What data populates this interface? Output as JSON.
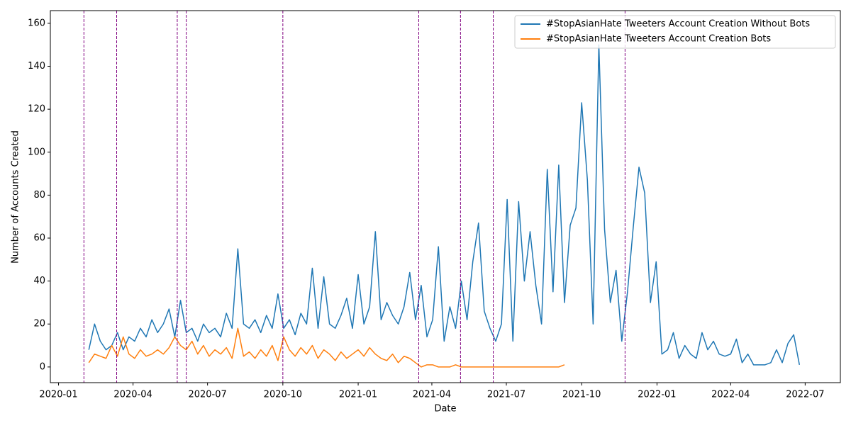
{
  "chart_data": {
    "type": "line",
    "xlabel": "Date",
    "ylabel": "Number of Accounts Created",
    "xlim": [
      "2019-12-22",
      "2022-08-13"
    ],
    "ylim": [
      -7.3,
      165.9
    ],
    "yticks": [
      0,
      20,
      40,
      60,
      80,
      100,
      120,
      140,
      160
    ],
    "xticks": [
      {
        "value": "2020-01-01",
        "label": "2020-01"
      },
      {
        "value": "2020-04-01",
        "label": "2020-04"
      },
      {
        "value": "2020-07-01",
        "label": "2020-07"
      },
      {
        "value": "2020-10-01",
        "label": "2020-10"
      },
      {
        "value": "2021-01-01",
        "label": "2021-01"
      },
      {
        "value": "2021-04-01",
        "label": "2021-04"
      },
      {
        "value": "2021-07-01",
        "label": "2021-07"
      },
      {
        "value": "2021-10-01",
        "label": "2021-10"
      },
      {
        "value": "2022-01-01",
        "label": "2022-01"
      },
      {
        "value": "2022-04-01",
        "label": "2022-04"
      },
      {
        "value": "2022-07-01",
        "label": "2022-07"
      }
    ],
    "legend": "upper right",
    "vlines": {
      "color": "#800080",
      "x": [
        "2020-02-01",
        "2020-03-12",
        "2020-05-25",
        "2020-06-05",
        "2020-10-01",
        "2021-03-16",
        "2021-05-06",
        "2021-06-15",
        "2021-11-23"
      ]
    },
    "x": [
      "2020-02-07",
      "2020-02-14",
      "2020-02-21",
      "2020-02-28",
      "2020-03-06",
      "2020-03-13",
      "2020-03-20",
      "2020-03-27",
      "2020-04-03",
      "2020-04-10",
      "2020-04-17",
      "2020-04-24",
      "2020-05-01",
      "2020-05-08",
      "2020-05-15",
      "2020-05-22",
      "2020-05-29",
      "2020-06-05",
      "2020-06-12",
      "2020-06-19",
      "2020-06-26",
      "2020-07-03",
      "2020-07-10",
      "2020-07-17",
      "2020-07-24",
      "2020-07-31",
      "2020-08-07",
      "2020-08-14",
      "2020-08-21",
      "2020-08-28",
      "2020-09-04",
      "2020-09-11",
      "2020-09-18",
      "2020-09-25",
      "2020-10-02",
      "2020-10-09",
      "2020-10-16",
      "2020-10-23",
      "2020-10-30",
      "2020-11-06",
      "2020-11-13",
      "2020-11-20",
      "2020-11-27",
      "2020-12-04",
      "2020-12-11",
      "2020-12-18",
      "2020-12-25",
      "2021-01-01",
      "2021-01-08",
      "2021-01-15",
      "2021-01-22",
      "2021-01-29",
      "2021-02-05",
      "2021-02-12",
      "2021-02-19",
      "2021-02-26",
      "2021-03-05",
      "2021-03-12",
      "2021-03-19",
      "2021-03-26",
      "2021-04-02",
      "2021-04-09",
      "2021-04-16",
      "2021-04-23",
      "2021-04-30",
      "2021-05-07",
      "2021-05-14",
      "2021-05-21",
      "2021-05-28",
      "2021-06-04",
      "2021-06-11",
      "2021-06-18",
      "2021-06-25",
      "2021-07-02",
      "2021-07-09",
      "2021-07-16",
      "2021-07-23",
      "2021-07-30",
      "2021-08-06",
      "2021-08-13",
      "2021-08-20",
      "2021-08-27",
      "2021-09-03",
      "2021-09-10",
      "2021-09-17",
      "2021-09-24",
      "2021-10-01",
      "2021-10-08",
      "2021-10-15",
      "2021-10-22",
      "2021-10-29",
      "2021-11-05",
      "2021-11-12",
      "2021-11-19",
      "2021-11-26",
      "2021-12-03",
      "2021-12-10",
      "2021-12-17",
      "2021-12-24",
      "2021-12-31",
      "2022-01-07",
      "2022-01-14",
      "2022-01-21",
      "2022-01-28",
      "2022-02-04",
      "2022-02-11",
      "2022-02-18",
      "2022-02-25",
      "2022-03-04",
      "2022-03-11",
      "2022-03-18",
      "2022-03-25",
      "2022-04-01",
      "2022-04-08",
      "2022-04-15",
      "2022-04-22",
      "2022-04-29",
      "2022-05-06",
      "2022-05-13",
      "2022-05-20",
      "2022-05-27",
      "2022-06-03",
      "2022-06-10",
      "2022-06-17",
      "2022-06-24"
    ],
    "series": [
      {
        "name": "#StopAsianHate Tweeters Account Creation Without Bots",
        "color": "#1f77b4",
        "values": [
          8,
          20,
          12,
          8,
          10,
          16,
          8,
          14,
          12,
          18,
          14,
          22,
          16,
          20,
          27,
          14,
          31,
          16,
          18,
          12,
          20,
          16,
          18,
          14,
          25,
          18,
          55,
          20,
          18,
          22,
          16,
          24,
          18,
          34,
          18,
          22,
          15,
          25,
          20,
          46,
          18,
          42,
          20,
          18,
          24,
          32,
          18,
          43,
          20,
          28,
          63,
          22,
          30,
          24,
          20,
          28,
          44,
          22,
          38,
          14,
          22,
          56,
          12,
          28,
          18,
          40,
          22,
          49,
          67,
          26,
          18,
          12,
          20,
          78,
          12,
          77,
          40,
          63,
          38,
          20,
          92,
          35,
          94,
          30,
          66,
          74,
          123,
          87,
          20,
          150,
          64,
          30,
          45,
          12,
          35,
          65,
          93,
          81,
          30,
          49,
          6,
          8,
          16,
          4,
          10,
          6,
          4,
          16,
          8,
          12,
          6,
          5,
          6,
          13,
          2,
          6,
          1,
          1,
          1,
          2,
          8,
          2,
          11,
          15,
          1
        ]
      },
      {
        "name": "#StopAsianHate Tweeters Account Creation Bots",
        "color": "#ff7f0e",
        "values": [
          2,
          6,
          5,
          4,
          10,
          5,
          14,
          6,
          4,
          8,
          5,
          6,
          8,
          6,
          9,
          14,
          10,
          8,
          12,
          6,
          10,
          5,
          8,
          6,
          9,
          4,
          18,
          5,
          7,
          4,
          8,
          5,
          10,
          3,
          14,
          8,
          5,
          9,
          6,
          10,
          4,
          8,
          6,
          3,
          7,
          4,
          6,
          8,
          5,
          9,
          6,
          4,
          3,
          6,
          2,
          5,
          4,
          2,
          0,
          1,
          1,
          0,
          0,
          0,
          1,
          0,
          0,
          0,
          0,
          0,
          0,
          0,
          0,
          0,
          0,
          0,
          0,
          0,
          0,
          0,
          0,
          0,
          0,
          1,
          null,
          null,
          null,
          null,
          null,
          null,
          null,
          null,
          null,
          null,
          null,
          null,
          null,
          null,
          null,
          null,
          null,
          null,
          null,
          null,
          null,
          null,
          null,
          null,
          null,
          null,
          null,
          null,
          null,
          null,
          null,
          null,
          null,
          null,
          null,
          null,
          null,
          null,
          null,
          null,
          null
        ]
      }
    ]
  }
}
